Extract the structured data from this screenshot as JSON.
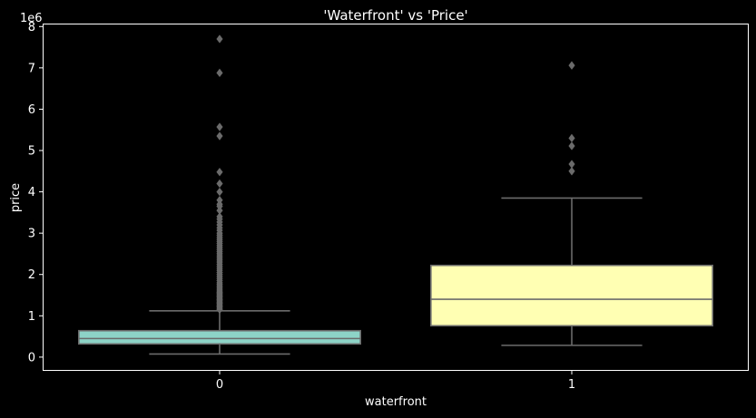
{
  "chart_data": {
    "type": "box",
    "title": "'Waterfront' vs 'Price'",
    "xlabel": "waterfront",
    "ylabel": "price",
    "y_offset_label": "1e6",
    "y_scale": 1000000,
    "ylim": [
      -310000,
      8050000
    ],
    "yticks": [
      0,
      1000000,
      2000000,
      3000000,
      4000000,
      5000000,
      6000000,
      7000000,
      8000000
    ],
    "ytick_labels": [
      "0",
      "1",
      "2",
      "3",
      "4",
      "5",
      "6",
      "7",
      "8"
    ],
    "categories": [
      "0",
      "1"
    ],
    "boxes": [
      {
        "category": "0",
        "color": "#8dd3c7",
        "whislo": 75000,
        "q1": 320000,
        "med": 450000,
        "q3": 640000,
        "whishi": 1120000,
        "fliers": [
          1150000,
          1180000,
          1210000,
          1240000,
          1270000,
          1300000,
          1330000,
          1360000,
          1390000,
          1420000,
          1450000,
          1480000,
          1510000,
          1540000,
          1570000,
          1600000,
          1640000,
          1680000,
          1720000,
          1760000,
          1800000,
          1850000,
          1900000,
          1950000,
          2000000,
          2050000,
          2100000,
          2150000,
          2200000,
          2250000,
          2300000,
          2350000,
          2400000,
          2450000,
          2500000,
          2550000,
          2600000,
          2650000,
          2700000,
          2750000,
          2800000,
          2850000,
          2900000,
          2950000,
          3000000,
          3070000,
          3130000,
          3200000,
          3270000,
          3340000,
          3400000,
          3550000,
          3650000,
          3700000,
          3800000,
          4000000,
          4200000,
          4480000,
          5350000,
          5570000,
          6880000,
          7700000
        ]
      },
      {
        "category": "1",
        "color": "#ffffb3",
        "whislo": 285000,
        "q1": 760000,
        "med": 1400000,
        "q3": 2220000,
        "whishi": 3850000,
        "fliers": [
          4500000,
          4670000,
          5110000,
          5300000,
          7060000
        ]
      }
    ],
    "grid": false,
    "legend": "none"
  }
}
